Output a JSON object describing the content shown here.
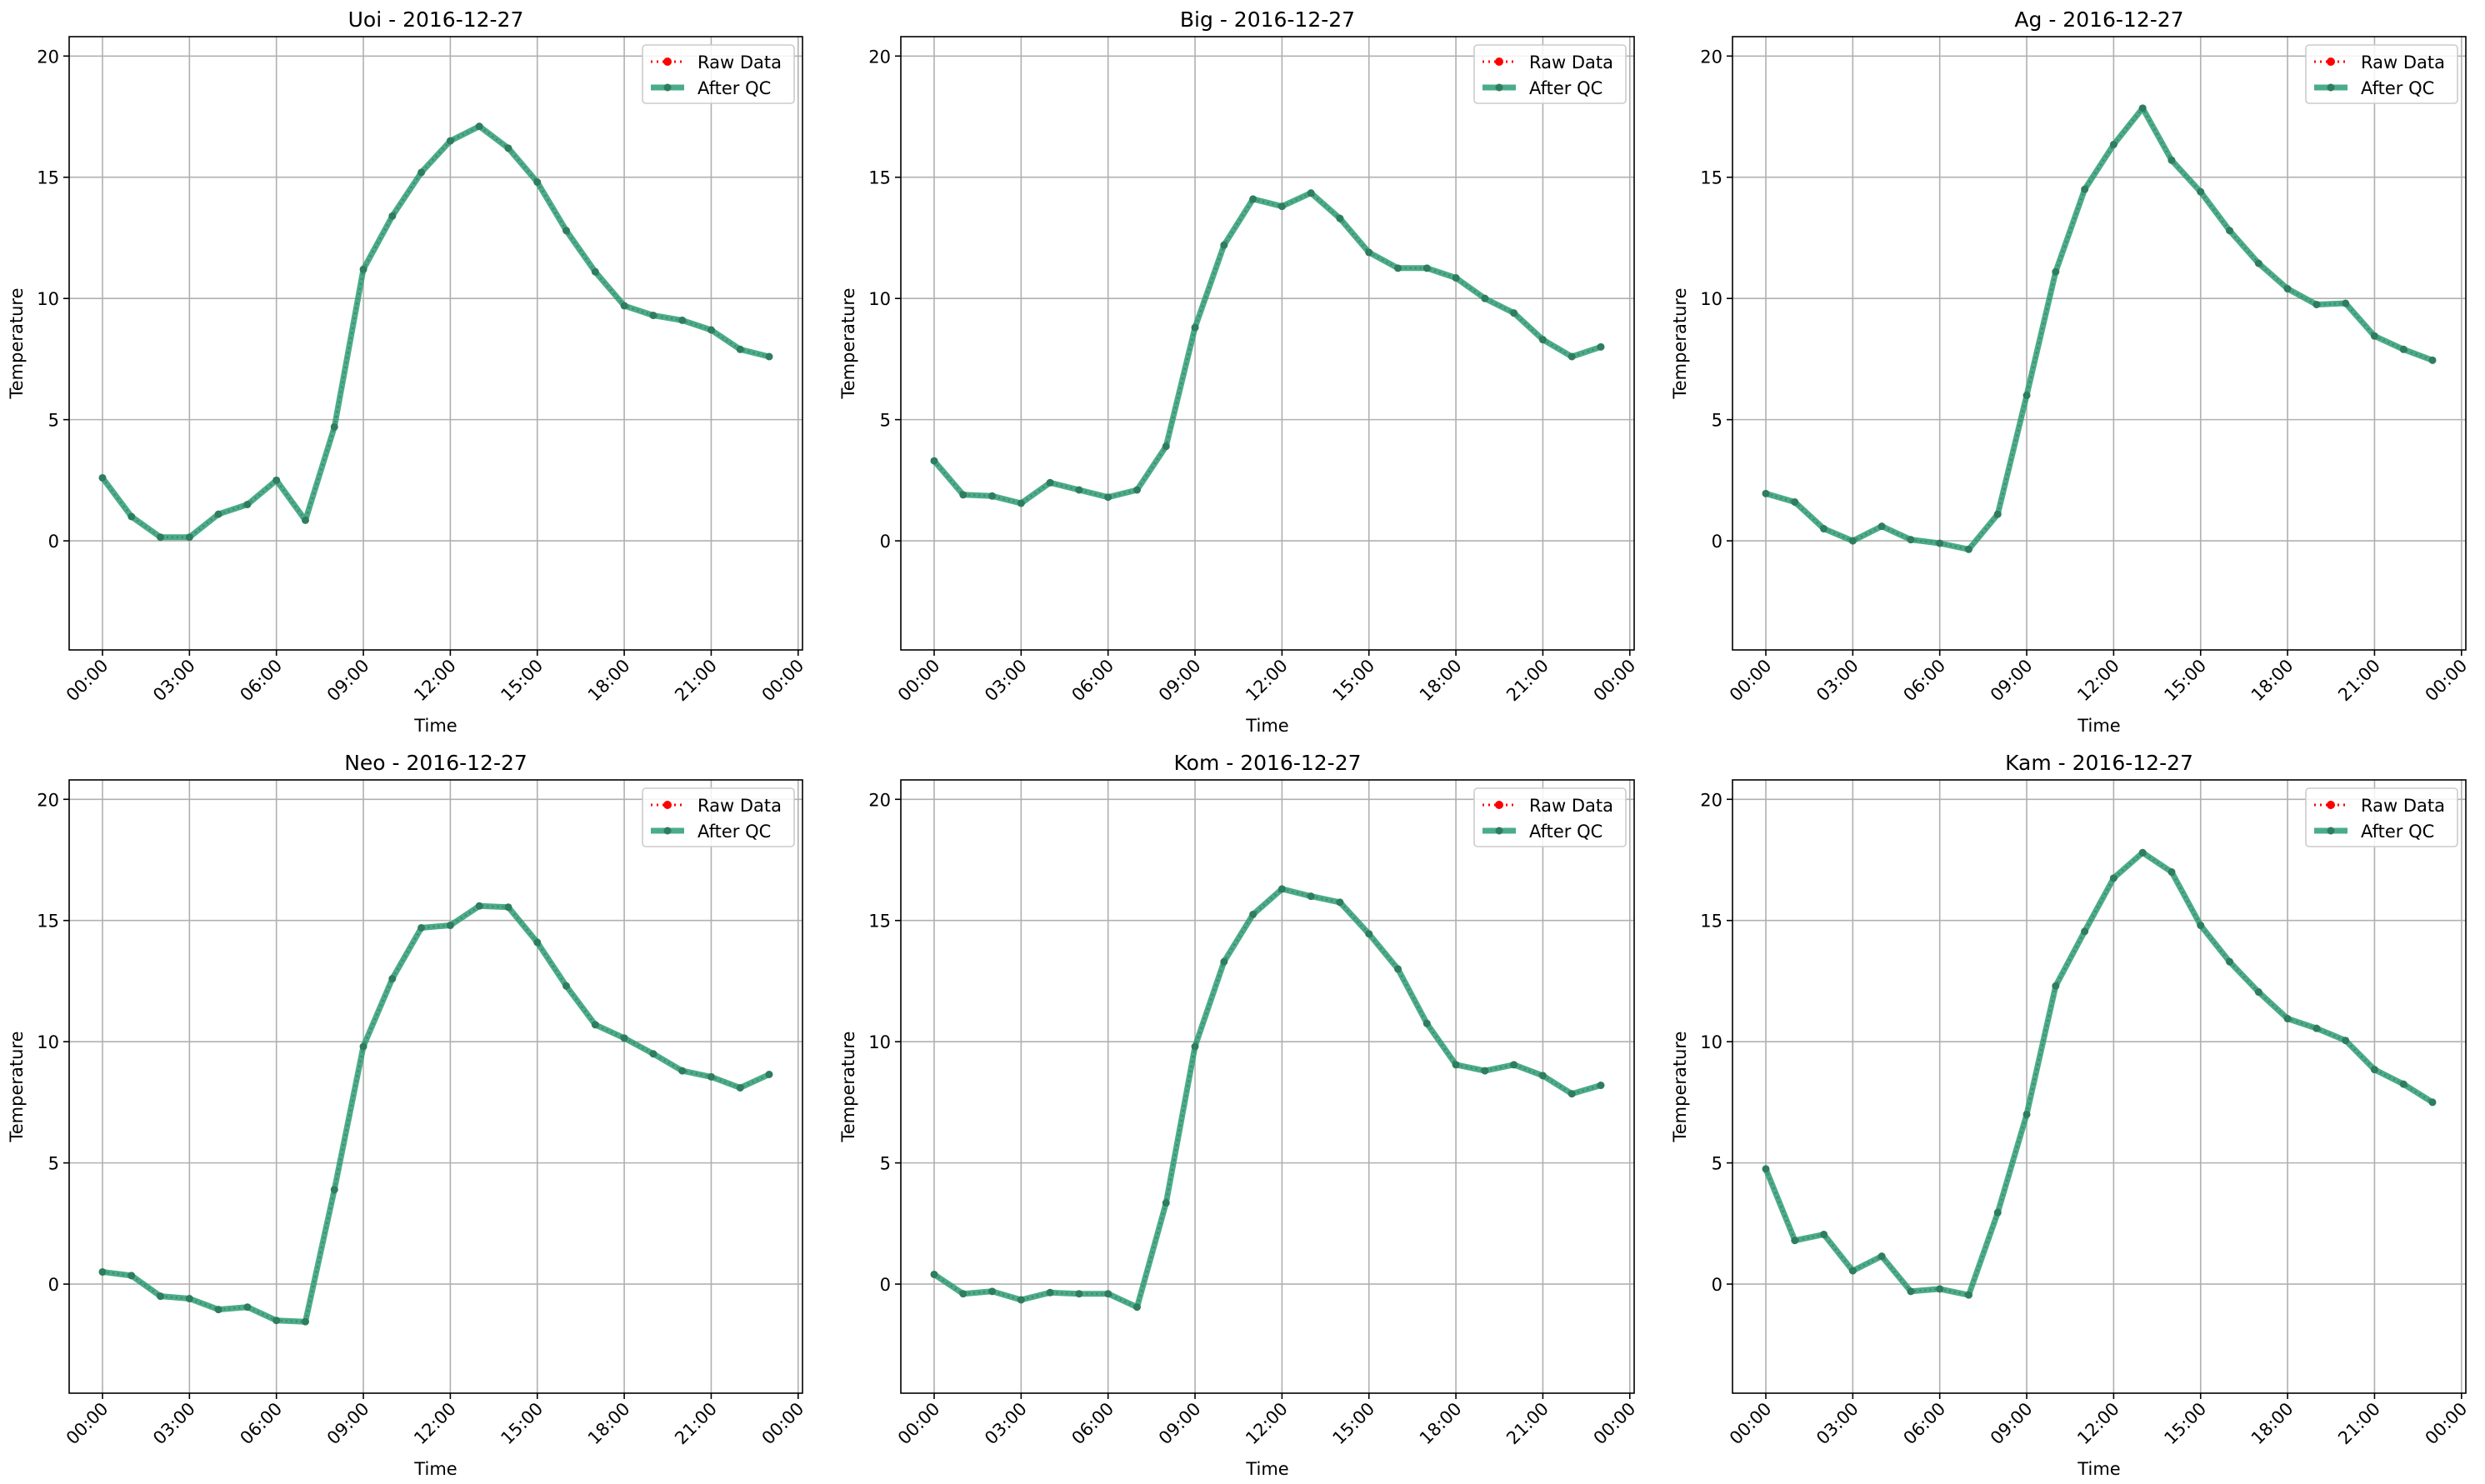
{
  "figure": {
    "background": "#ffffff",
    "grid_color": "#b0b0b0",
    "raw_color": "#ff0000",
    "qc_color": "#2a9d76",
    "qc_marker_color": "#2e7d5f"
  },
  "chart_data": [
    {
      "type": "line",
      "title": "Uoi - 2016-12-27",
      "xlabel": "Time",
      "ylabel": "Temperature",
      "xlim": [
        -1.15,
        24.15
      ],
      "ylim": [
        -4.5,
        20.8
      ],
      "xticks": [
        0,
        3,
        6,
        9,
        12,
        15,
        18,
        21,
        24
      ],
      "xtick_labels": [
        "00:00",
        "03:00",
        "06:00",
        "09:00",
        "12:00",
        "15:00",
        "18:00",
        "21:00",
        "00:00"
      ],
      "yticks": [
        0,
        5,
        10,
        15,
        20
      ],
      "ytick_labels": [
        "0",
        "5",
        "10",
        "15",
        "20"
      ],
      "grid": true,
      "legend_position": "top-right",
      "x": [
        0,
        1,
        2,
        3,
        4,
        5,
        6,
        7,
        8,
        9,
        10,
        11,
        12,
        13,
        14,
        15,
        16,
        17,
        18,
        19,
        20,
        21,
        22,
        23
      ],
      "series": [
        {
          "name": "Raw Data",
          "style": "dotted",
          "values": [
            2.6,
            1.0,
            0.15,
            0.15,
            1.1,
            1.5,
            2.5,
            0.85,
            4.7,
            11.2,
            13.4,
            15.2,
            16.5,
            17.1,
            16.2,
            14.8,
            12.8,
            11.1,
            9.7,
            9.3,
            9.1,
            8.7,
            7.9,
            7.6
          ]
        },
        {
          "name": "After QC",
          "style": "solid",
          "values": [
            2.6,
            1.0,
            0.15,
            0.15,
            1.1,
            1.5,
            2.5,
            0.85,
            4.7,
            11.2,
            13.4,
            15.2,
            16.5,
            17.1,
            16.2,
            14.8,
            12.8,
            11.1,
            9.7,
            9.3,
            9.1,
            8.7,
            7.9,
            7.6
          ]
        }
      ]
    },
    {
      "type": "line",
      "title": "Big - 2016-12-27",
      "xlabel": "Time",
      "ylabel": "Temperature",
      "xlim": [
        -1.15,
        24.15
      ],
      "ylim": [
        -4.5,
        20.8
      ],
      "xticks": [
        0,
        3,
        6,
        9,
        12,
        15,
        18,
        21,
        24
      ],
      "xtick_labels": [
        "00:00",
        "03:00",
        "06:00",
        "09:00",
        "12:00",
        "15:00",
        "18:00",
        "21:00",
        "00:00"
      ],
      "yticks": [
        0,
        5,
        10,
        15,
        20
      ],
      "ytick_labels": [
        "0",
        "5",
        "10",
        "15",
        "20"
      ],
      "grid": true,
      "legend_position": "top-right",
      "x": [
        0,
        1,
        2,
        3,
        4,
        5,
        6,
        7,
        8,
        9,
        10,
        11,
        12,
        13,
        14,
        15,
        16,
        17,
        18,
        19,
        20,
        21,
        22,
        23
      ],
      "series": [
        {
          "name": "Raw Data",
          "style": "dotted",
          "values": [
            3.3,
            1.9,
            1.85,
            1.55,
            2.4,
            2.1,
            1.8,
            2.1,
            3.9,
            8.8,
            12.2,
            14.1,
            13.8,
            14.35,
            13.3,
            11.9,
            11.25,
            11.25,
            10.85,
            10.0,
            9.4,
            8.3,
            7.6,
            8.0
          ]
        },
        {
          "name": "After QC",
          "style": "solid",
          "values": [
            3.3,
            1.9,
            1.85,
            1.55,
            2.4,
            2.1,
            1.8,
            2.1,
            3.9,
            8.8,
            12.2,
            14.1,
            13.8,
            14.35,
            13.3,
            11.9,
            11.25,
            11.25,
            10.85,
            10.0,
            9.4,
            8.3,
            7.6,
            8.0
          ]
        }
      ]
    },
    {
      "type": "line",
      "title": "Ag - 2016-12-27",
      "xlabel": "Time",
      "ylabel": "Temperature",
      "xlim": [
        -1.15,
        24.15
      ],
      "ylim": [
        -4.5,
        20.8
      ],
      "xticks": [
        0,
        3,
        6,
        9,
        12,
        15,
        18,
        21,
        24
      ],
      "xtick_labels": [
        "00:00",
        "03:00",
        "06:00",
        "09:00",
        "12:00",
        "15:00",
        "18:00",
        "21:00",
        "00:00"
      ],
      "yticks": [
        0,
        5,
        10,
        15,
        20
      ],
      "ytick_labels": [
        "0",
        "5",
        "10",
        "15",
        "20"
      ],
      "grid": true,
      "legend_position": "top-right",
      "x": [
        0,
        1,
        2,
        3,
        4,
        5,
        6,
        7,
        8,
        9,
        10,
        11,
        12,
        13,
        14,
        15,
        16,
        17,
        18,
        19,
        20,
        21,
        22,
        23
      ],
      "series": [
        {
          "name": "Raw Data",
          "style": "dotted",
          "values": [
            1.95,
            1.6,
            0.5,
            0.0,
            0.6,
            0.05,
            -0.1,
            -0.35,
            1.1,
            6.0,
            11.1,
            14.5,
            16.35,
            17.85,
            15.7,
            14.4,
            12.8,
            11.45,
            10.4,
            9.75,
            9.8,
            8.45,
            7.9,
            7.45
          ]
        },
        {
          "name": "After QC",
          "style": "solid",
          "values": [
            1.95,
            1.6,
            0.5,
            0.0,
            0.6,
            0.05,
            -0.1,
            -0.35,
            1.1,
            6.0,
            11.1,
            14.5,
            16.35,
            17.85,
            15.7,
            14.4,
            12.8,
            11.45,
            10.4,
            9.75,
            9.8,
            8.45,
            7.9,
            7.45
          ]
        }
      ]
    },
    {
      "type": "line",
      "title": "Neo - 2016-12-27",
      "xlabel": "Time",
      "ylabel": "Temperature",
      "xlim": [
        -1.15,
        24.15
      ],
      "ylim": [
        -4.5,
        20.8
      ],
      "xticks": [
        0,
        3,
        6,
        9,
        12,
        15,
        18,
        21,
        24
      ],
      "xtick_labels": [
        "00:00",
        "03:00",
        "06:00",
        "09:00",
        "12:00",
        "15:00",
        "18:00",
        "21:00",
        "00:00"
      ],
      "yticks": [
        0,
        5,
        10,
        15,
        20
      ],
      "ytick_labels": [
        "0",
        "5",
        "10",
        "15",
        "20"
      ],
      "grid": true,
      "legend_position": "top-right",
      "x": [
        0,
        1,
        2,
        3,
        4,
        5,
        6,
        7,
        8,
        9,
        10,
        11,
        12,
        13,
        14,
        15,
        16,
        17,
        18,
        19,
        20,
        21,
        22,
        23
      ],
      "series": [
        {
          "name": "Raw Data",
          "style": "dotted",
          "values": [
            0.5,
            0.35,
            -0.5,
            -0.6,
            -1.05,
            -0.95,
            -1.5,
            -1.55,
            3.9,
            9.8,
            12.6,
            14.7,
            14.8,
            15.6,
            15.55,
            14.1,
            12.3,
            10.7,
            10.15,
            9.5,
            8.8,
            8.55,
            8.1,
            8.65
          ]
        },
        {
          "name": "After QC",
          "style": "solid",
          "values": [
            0.5,
            0.35,
            -0.5,
            -0.6,
            -1.05,
            -0.95,
            -1.5,
            -1.55,
            3.9,
            9.8,
            12.6,
            14.7,
            14.8,
            15.6,
            15.55,
            14.1,
            12.3,
            10.7,
            10.15,
            9.5,
            8.8,
            8.55,
            8.1,
            8.65
          ]
        }
      ]
    },
    {
      "type": "line",
      "title": "Kom - 2016-12-27",
      "xlabel": "Time",
      "ylabel": "Temperature",
      "xlim": [
        -1.15,
        24.15
      ],
      "ylim": [
        -4.5,
        20.8
      ],
      "xticks": [
        0,
        3,
        6,
        9,
        12,
        15,
        18,
        21,
        24
      ],
      "xtick_labels": [
        "00:00",
        "03:00",
        "06:00",
        "09:00",
        "12:00",
        "15:00",
        "18:00",
        "21:00",
        "00:00"
      ],
      "yticks": [
        0,
        5,
        10,
        15,
        20
      ],
      "ytick_labels": [
        "0",
        "5",
        "10",
        "15",
        "20"
      ],
      "grid": true,
      "legend_position": "top-right",
      "x": [
        0,
        1,
        2,
        3,
        4,
        5,
        6,
        7,
        8,
        9,
        10,
        11,
        12,
        13,
        14,
        15,
        16,
        17,
        18,
        19,
        20,
        21,
        22,
        23
      ],
      "series": [
        {
          "name": "Raw Data",
          "style": "dotted",
          "values": [
            0.4,
            -0.4,
            -0.3,
            -0.65,
            -0.35,
            -0.4,
            -0.4,
            -0.95,
            3.35,
            9.8,
            13.3,
            15.25,
            16.3,
            16.0,
            15.75,
            14.45,
            13.0,
            10.75,
            9.05,
            8.8,
            9.05,
            8.6,
            7.85,
            8.2
          ]
        },
        {
          "name": "After QC",
          "style": "solid",
          "values": [
            0.4,
            -0.4,
            -0.3,
            -0.65,
            -0.35,
            -0.4,
            -0.4,
            -0.95,
            3.35,
            9.8,
            13.3,
            15.25,
            16.3,
            16.0,
            15.75,
            14.45,
            13.0,
            10.75,
            9.05,
            8.8,
            9.05,
            8.6,
            7.85,
            8.2
          ]
        }
      ]
    },
    {
      "type": "line",
      "title": "Kam - 2016-12-27",
      "xlabel": "Time",
      "ylabel": "Temperature",
      "xlim": [
        -1.15,
        24.15
      ],
      "ylim": [
        -4.5,
        20.8
      ],
      "xticks": [
        0,
        3,
        6,
        9,
        12,
        15,
        18,
        21,
        24
      ],
      "xtick_labels": [
        "00:00",
        "03:00",
        "06:00",
        "09:00",
        "12:00",
        "15:00",
        "18:00",
        "21:00",
        "00:00"
      ],
      "yticks": [
        0,
        5,
        10,
        15,
        20
      ],
      "ytick_labels": [
        "0",
        "5",
        "10",
        "15",
        "20"
      ],
      "grid": true,
      "legend_position": "top-right",
      "x": [
        0,
        1,
        2,
        3,
        4,
        5,
        6,
        7,
        8,
        9,
        10,
        11,
        12,
        13,
        14,
        15,
        16,
        17,
        18,
        19,
        20,
        21,
        22,
        23
      ],
      "series": [
        {
          "name": "Raw Data",
          "style": "dotted",
          "values": [
            4.75,
            1.8,
            2.05,
            0.55,
            1.15,
            -0.3,
            -0.2,
            -0.45,
            2.95,
            7.0,
            12.3,
            14.55,
            16.75,
            17.8,
            17.0,
            14.8,
            13.3,
            12.05,
            10.95,
            10.55,
            10.05,
            8.85,
            8.25,
            7.5
          ]
        },
        {
          "name": "After QC",
          "style": "solid",
          "values": [
            4.75,
            1.8,
            2.05,
            0.55,
            1.15,
            -0.3,
            -0.2,
            -0.45,
            2.95,
            7.0,
            12.3,
            14.55,
            16.75,
            17.8,
            17.0,
            14.8,
            13.3,
            12.05,
            10.95,
            10.55,
            10.05,
            8.85,
            8.25,
            7.5
          ]
        }
      ]
    }
  ]
}
